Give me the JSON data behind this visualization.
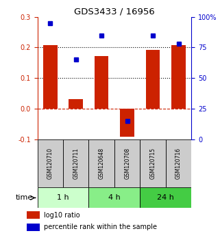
{
  "title": "GDS3433 / 16956",
  "samples": [
    "GSM120710",
    "GSM120711",
    "GSM120648",
    "GSM120708",
    "GSM120715",
    "GSM120716"
  ],
  "log10_ratio": [
    0.207,
    0.032,
    0.172,
    -0.092,
    0.193,
    0.207
  ],
  "percentile_rank": [
    95,
    65,
    85,
    15,
    85,
    78
  ],
  "left_ylim": [
    -0.1,
    0.3
  ],
  "right_ylim": [
    0,
    100
  ],
  "left_yticks": [
    -0.1,
    0.0,
    0.1,
    0.2,
    0.3
  ],
  "right_yticks": [
    0,
    25,
    50,
    75,
    100
  ],
  "right_yticklabels": [
    "0",
    "25",
    "50",
    "75",
    "100%"
  ],
  "dotted_lines": [
    0.1,
    0.2
  ],
  "zero_line": 0.0,
  "bar_color": "#cc2200",
  "dot_color": "#0000cc",
  "bar_width": 0.55,
  "time_groups": [
    {
      "label": "1 h",
      "n": 2,
      "color": "#ccffcc"
    },
    {
      "label": "4 h",
      "n": 2,
      "color": "#88ee88"
    },
    {
      "label": "24 h",
      "n": 2,
      "color": "#44cc44"
    }
  ],
  "time_label": "time",
  "legend": [
    {
      "label": "log10 ratio",
      "color": "#cc2200"
    },
    {
      "label": "percentile rank within the sample",
      "color": "#0000cc"
    }
  ],
  "bg_color": "#ffffff",
  "sample_box_color": "#cccccc"
}
